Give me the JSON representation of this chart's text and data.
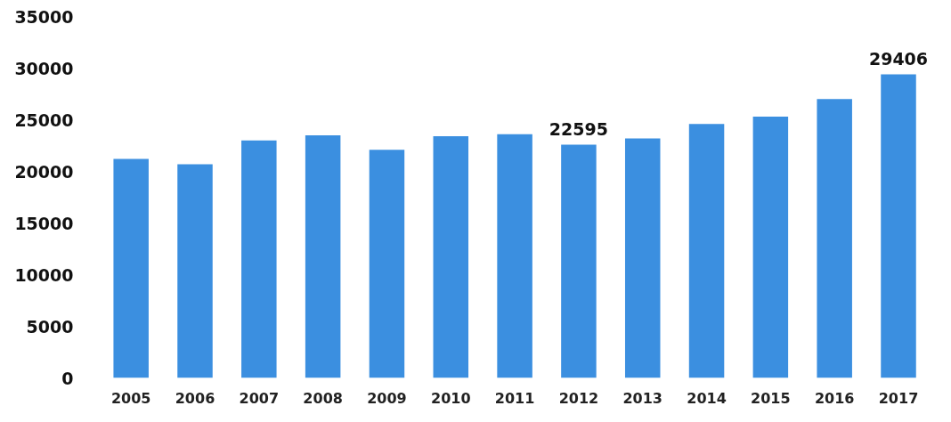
{
  "chart_data": {
    "type": "bar",
    "categories": [
      "2005",
      "2006",
      "2007",
      "2008",
      "2009",
      "2010",
      "2011",
      "2012",
      "2013",
      "2014",
      "2015",
      "2016",
      "2017"
    ],
    "values": [
      21200,
      20700,
      23000,
      23500,
      22100,
      23400,
      23600,
      22595,
      23200,
      24600,
      25300,
      27000,
      29406
    ],
    "value_labels": [
      null,
      null,
      null,
      null,
      null,
      null,
      null,
      "22595",
      null,
      null,
      null,
      null,
      "29406"
    ],
    "color": "#3b8fe0",
    "ylim": [
      0,
      35000
    ],
    "yticks": [
      0,
      5000,
      10000,
      15000,
      20000,
      25000,
      30000,
      35000
    ],
    "grid": false
  }
}
